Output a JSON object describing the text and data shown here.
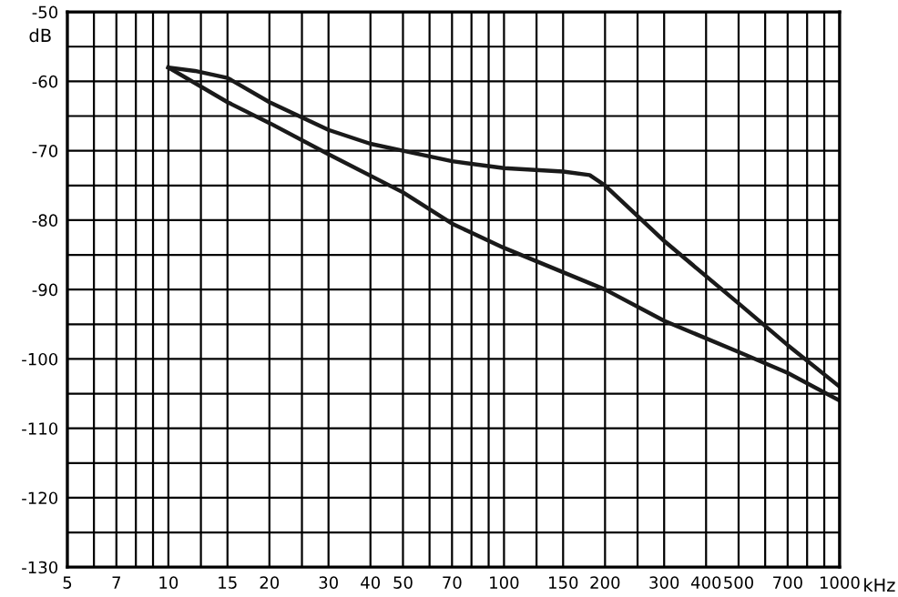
{
  "chart_data": {
    "type": "line",
    "xlabel": "kHz",
    "ylabel": "dB",
    "log": "x",
    "xlim": [
      5,
      1000
    ],
    "ylim": [
      -130,
      -50
    ],
    "xticks": [
      5,
      {
        "value": 6,
        "label": null
      },
      7,
      {
        "value": 8,
        "label": null
      },
      {
        "value": 9,
        "label": null
      },
      10,
      {
        "value": 12.5,
        "label": null
      },
      15,
      20,
      {
        "value": 25,
        "label": null
      },
      30,
      40,
      50,
      {
        "value": 60,
        "label": null
      },
      70,
      {
        "value": 80,
        "label": null
      },
      {
        "value": 90,
        "label": null
      },
      100,
      {
        "value": 125,
        "label": null
      },
      150,
      200,
      {
        "value": 250,
        "label": null
      },
      300,
      400,
      500,
      {
        "value": 600,
        "label": null
      },
      700,
      {
        "value": 800,
        "label": null
      },
      {
        "value": 900,
        "label": null
      },
      1000
    ],
    "yticks": [
      -130,
      {
        "value": -125,
        "label": null
      },
      -120,
      {
        "value": -115,
        "label": null
      },
      -110,
      {
        "value": -105,
        "label": null
      },
      -100,
      {
        "value": -95,
        "label": null
      },
      -90,
      {
        "value": -85,
        "label": null
      },
      -80,
      {
        "value": -75,
        "label": null
      },
      -70,
      {
        "value": -65,
        "label": null
      },
      -60,
      {
        "value": -55,
        "label": null
      },
      -50
    ],
    "grid": true,
    "marker": "none",
    "line_style": "solid",
    "series": [
      {
        "color": "#1a1a1a",
        "x": [
          10,
          12,
          15,
          20,
          30,
          40,
          50,
          70,
          100,
          150,
          180,
          200,
          300,
          500,
          700,
          1000
        ],
        "values": [
          -58,
          -58.5,
          -59.5,
          -63,
          -67,
          -69,
          -70,
          -71.5,
          -72.5,
          -73,
          -73.5,
          -75,
          -83,
          -92,
          -98,
          -104
        ]
      },
      {
        "color": "#1a1a1a",
        "x": [
          10,
          15,
          20,
          30,
          50,
          70,
          100,
          200,
          300,
          500,
          700,
          1000
        ],
        "values": [
          -58,
          -63,
          -66,
          -70.5,
          -76,
          -80.5,
          -84,
          -90,
          -94.5,
          -99,
          -102,
          -106
        ]
      }
    ]
  }
}
